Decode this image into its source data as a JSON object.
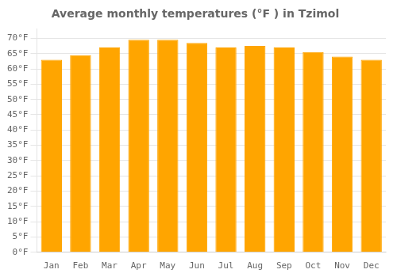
{
  "chart_data": {
    "type": "bar",
    "title": "Average monthly temperatures (°F ) in Tzimol",
    "categories": [
      "Jan",
      "Feb",
      "Mar",
      "Apr",
      "May",
      "Jun",
      "Jul",
      "Aug",
      "Sep",
      "Oct",
      "Nov",
      "Dec"
    ],
    "values": [
      63.0,
      64.5,
      67.0,
      69.5,
      69.5,
      68.5,
      67.0,
      67.5,
      67.0,
      65.5,
      64.0,
      63.0
    ],
    "color": "#FFA500",
    "ylim": [
      0,
      73
    ],
    "yticks": [
      {
        "value": 0,
        "label": "0°F"
      },
      {
        "value": 5,
        "label": "5°F"
      },
      {
        "value": 10,
        "label": "10°F"
      },
      {
        "value": 15,
        "label": "15°F"
      },
      {
        "value": 20,
        "label": "20°F"
      },
      {
        "value": 25,
        "label": "25°F"
      },
      {
        "value": 30,
        "label": "30°F"
      },
      {
        "value": 35,
        "label": "35°F"
      },
      {
        "value": 40,
        "label": "40°F"
      },
      {
        "value": 45,
        "label": "45°F"
      },
      {
        "value": 50,
        "label": "50°F"
      },
      {
        "value": 55,
        "label": "55°F"
      },
      {
        "value": 60,
        "label": "60°F"
      },
      {
        "value": 65,
        "label": "65°F"
      },
      {
        "value": 70,
        "label": "70°F"
      }
    ],
    "grid": true
  }
}
